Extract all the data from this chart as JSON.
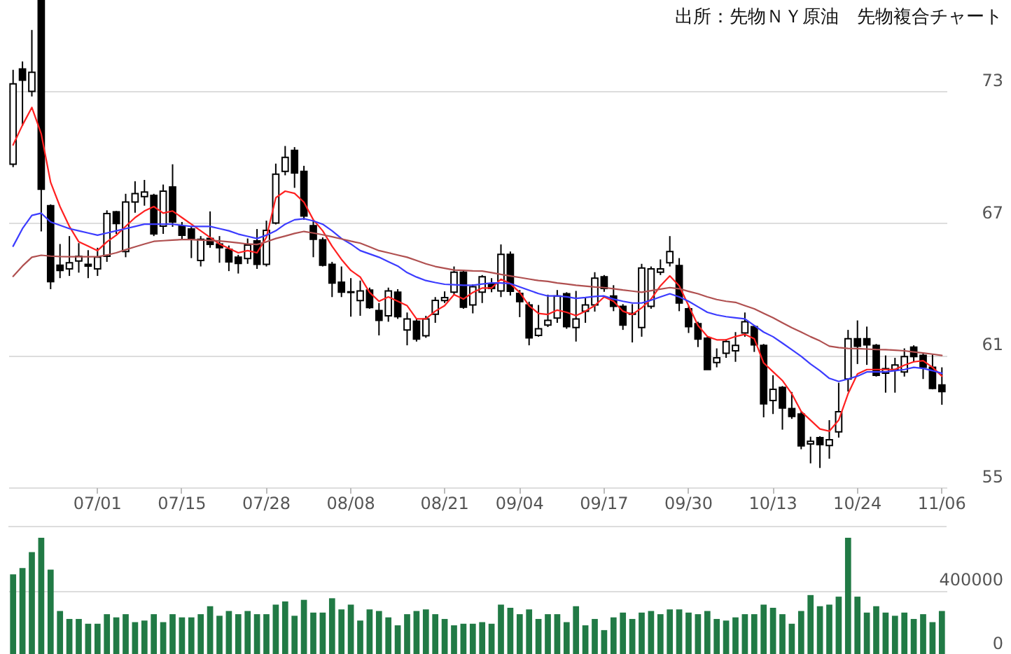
{
  "chart_data": [
    {
      "type": "candlestick",
      "annotations": [
        "出所：先物ＮＹ原油　先物複合チャート"
      ],
      "categories": [
        null,
        null,
        null,
        null,
        null,
        null,
        null,
        null,
        null,
        "07/01",
        null,
        null,
        null,
        null,
        null,
        null,
        null,
        null,
        "07/15",
        null,
        null,
        null,
        null,
        null,
        null,
        null,
        null,
        "07/28",
        null,
        null,
        null,
        null,
        null,
        null,
        null,
        null,
        "08/08",
        null,
        null,
        null,
        null,
        null,
        null,
        null,
        null,
        null,
        "08/21",
        null,
        null,
        null,
        null,
        null,
        null,
        null,
        "09/04",
        null,
        null,
        null,
        null,
        null,
        null,
        null,
        null,
        "09/17",
        null,
        null,
        null,
        null,
        null,
        null,
        null,
        null,
        "09/30",
        null,
        null,
        null,
        null,
        null,
        null,
        null,
        null,
        "10/13",
        null,
        null,
        null,
        null,
        null,
        null,
        null,
        null,
        "10/24",
        null,
        null,
        null,
        null,
        null,
        null,
        null,
        null,
        "11/06"
      ],
      "ohlc": [
        [
          69.67,
          73.96,
          69.54,
          73.32
        ],
        [
          74.0,
          74.34,
          71.41,
          73.49
        ],
        [
          72.98,
          75.77,
          72.75,
          73.85
        ],
        [
          77.1,
          77.1,
          66.62,
          68.54
        ],
        [
          67.79,
          67.85,
          64.0,
          64.34
        ],
        [
          65.09,
          66.05,
          64.5,
          64.85
        ],
        [
          64.92,
          66.41,
          64.6,
          65.2
        ],
        [
          65.28,
          66.09,
          64.75,
          65.49
        ],
        [
          65.13,
          65.77,
          64.5,
          65.05
        ],
        [
          64.92,
          65.88,
          64.6,
          65.45
        ],
        [
          65.49,
          67.58,
          65.24,
          67.43
        ],
        [
          67.51,
          67.55,
          66.51,
          66.98
        ],
        [
          65.71,
          68.33,
          65.45,
          67.96
        ],
        [
          67.96,
          68.9,
          67.47,
          68.34
        ],
        [
          68.2,
          68.96,
          67.79,
          68.41
        ],
        [
          68.26,
          68.33,
          66.41,
          66.51
        ],
        [
          66.86,
          68.75,
          66.51,
          68.45
        ],
        [
          68.64,
          69.67,
          66.83,
          67.05
        ],
        [
          66.86,
          67.05,
          66.26,
          66.45
        ],
        [
          66.73,
          66.83,
          65.41,
          66.3
        ],
        [
          65.3,
          66.41,
          65.03,
          66.26
        ],
        [
          66.3,
          67.53,
          65.88,
          66.03
        ],
        [
          66.05,
          66.41,
          65.2,
          65.88
        ],
        [
          65.81,
          65.98,
          64.82,
          65.24
        ],
        [
          65.45,
          65.56,
          64.71,
          65.17
        ],
        [
          65.39,
          66.3,
          65.15,
          66.0
        ],
        [
          66.19,
          66.73,
          64.92,
          65.13
        ],
        [
          65.13,
          67.11,
          65.03,
          66.67
        ],
        [
          67.0,
          69.7,
          66.94,
          69.22
        ],
        [
          69.35,
          70.5,
          69.17,
          69.98
        ],
        [
          70.3,
          70.45,
          68.6,
          69.28
        ],
        [
          69.35,
          69.6,
          67.15,
          67.32
        ],
        [
          66.88,
          67.15,
          65.45,
          66.26
        ],
        [
          66.24,
          66.35,
          65.03,
          65.09
        ],
        [
          65.13,
          65.24,
          63.64,
          64.28
        ],
        [
          64.32,
          65.03,
          63.64,
          63.86
        ],
        [
          63.88,
          64.5,
          62.75,
          63.85
        ],
        [
          63.48,
          64.39,
          62.79,
          63.92
        ],
        [
          63.96,
          64.07,
          63.11,
          63.16
        ],
        [
          63.03,
          63.37,
          61.9,
          62.58
        ],
        [
          62.79,
          64.07,
          62.52,
          63.92
        ],
        [
          63.86,
          64.0,
          62.65,
          62.75
        ],
        [
          62.15,
          62.94,
          61.45,
          62.65
        ],
        [
          62.54,
          62.65,
          61.62,
          61.73
        ],
        [
          61.88,
          62.79,
          61.79,
          62.65
        ],
        [
          62.86,
          63.64,
          62.47,
          63.49
        ],
        [
          63.48,
          63.9,
          63.37,
          63.62
        ],
        [
          63.86,
          65.03,
          63.71,
          64.77
        ],
        [
          64.77,
          64.85,
          63.11,
          63.18
        ],
        [
          63.28,
          64.22,
          62.9,
          64.11
        ],
        [
          63.86,
          64.64,
          63.37,
          64.56
        ],
        [
          64.24,
          64.5,
          63.86,
          64.03
        ],
        [
          63.92,
          66.03,
          63.64,
          65.58
        ],
        [
          65.58,
          65.71,
          63.71,
          63.9
        ],
        [
          63.81,
          63.96,
          62.73,
          63.43
        ],
        [
          63.28,
          63.43,
          61.45,
          61.79
        ],
        [
          61.9,
          63.28,
          61.84,
          62.2
        ],
        [
          62.37,
          63.75,
          62.28,
          62.58
        ],
        [
          62.69,
          63.96,
          62.47,
          63.69
        ],
        [
          63.79,
          63.86,
          62.2,
          62.3
        ],
        [
          62.26,
          63.92,
          61.62,
          62.65
        ],
        [
          63.0,
          63.64,
          62.47,
          63.28
        ],
        [
          63.28,
          64.77,
          62.98,
          64.5
        ],
        [
          64.56,
          64.64,
          63.88,
          64.03
        ],
        [
          63.69,
          64.18,
          63.0,
          63.22
        ],
        [
          63.22,
          63.32,
          62.15,
          62.37
        ],
        [
          62.9,
          63.32,
          61.58,
          62.86
        ],
        [
          62.26,
          65.15,
          61.84,
          64.96
        ],
        [
          63.22,
          65.03,
          63.11,
          64.92
        ],
        [
          64.77,
          65.35,
          64.64,
          64.92
        ],
        [
          65.2,
          66.41,
          65.03,
          65.71
        ],
        [
          65.07,
          65.41,
          63.0,
          63.37
        ],
        [
          63.11,
          63.22,
          62.01,
          62.3
        ],
        [
          62.43,
          62.52,
          61.37,
          61.73
        ],
        [
          61.77,
          61.84,
          60.35,
          60.35
        ],
        [
          60.67,
          61.31,
          60.45,
          60.88
        ],
        [
          61.09,
          61.73,
          60.88,
          61.62
        ],
        [
          61.2,
          62.05,
          60.7,
          61.45
        ],
        [
          62.01,
          62.94,
          61.84,
          62.52
        ],
        [
          62.3,
          62.37,
          61.15,
          61.47
        ],
        [
          61.45,
          61.51,
          58.18,
          58.79
        ],
        [
          58.94,
          60.09,
          58.33,
          59.45
        ],
        [
          59.54,
          59.6,
          57.62,
          58.6
        ],
        [
          58.58,
          59.33,
          58.11,
          58.22
        ],
        [
          58.33,
          58.45,
          56.73,
          56.88
        ],
        [
          56.97,
          57.3,
          56.09,
          57.09
        ],
        [
          57.26,
          57.32,
          55.88,
          56.94
        ],
        [
          56.9,
          58.05,
          56.3,
          57.16
        ],
        [
          57.52,
          59.75,
          57.26,
          58.43
        ],
        [
          59.92,
          62.15,
          59.35,
          61.75
        ],
        [
          61.75,
          62.58,
          60.6,
          61.41
        ],
        [
          61.75,
          62.3,
          60.56,
          61.47
        ],
        [
          61.45,
          61.51,
          60.03,
          60.09
        ],
        [
          60.18,
          60.99,
          59.3,
          60.39
        ],
        [
          60.35,
          60.88,
          59.3,
          60.56
        ],
        [
          60.24,
          61.31,
          60.03,
          60.94
        ],
        [
          61.37,
          61.45,
          60.69,
          60.94
        ],
        [
          60.99,
          61.09,
          59.92,
          60.45
        ],
        [
          60.45,
          61.03,
          59.45,
          59.49
        ],
        [
          59.65,
          60.45,
          58.75,
          59.35
        ]
      ],
      "series": [
        {
          "type": "line",
          "color": "#ff2020",
          "values": [
            70.55,
            71.45,
            72.25,
            71.05,
            68.85,
            67.75,
            66.85,
            66.15,
            65.95,
            65.75,
            66.15,
            66.45,
            66.85,
            67.25,
            67.55,
            67.75,
            67.45,
            67.55,
            67.25,
            66.95,
            66.65,
            66.35,
            66.05,
            65.85,
            65.65,
            65.75,
            65.65,
            66.35,
            68.15,
            68.45,
            68.35,
            67.95,
            67.15,
            66.65,
            65.95,
            65.35,
            64.85,
            64.55,
            63.85,
            63.45,
            63.65,
            63.45,
            63.25,
            62.65,
            62.65,
            63.0,
            63.25,
            63.75,
            63.55,
            63.85,
            64.05,
            64.05,
            64.45,
            64.25,
            63.85,
            63.25,
            62.9,
            62.85,
            63.05,
            62.95,
            62.8,
            63.0,
            63.25,
            63.65,
            63.45,
            63.0,
            62.85,
            63.15,
            63.55,
            64.15,
            64.6,
            64.15,
            63.25,
            62.35,
            61.85,
            61.7,
            61.7,
            61.85,
            61.95,
            61.75,
            60.65,
            60.25,
            59.85,
            59.25,
            58.45,
            58.05,
            57.65,
            57.55,
            58.05,
            59.25,
            60.15,
            60.35,
            60.35,
            60.35,
            60.35,
            60.55,
            60.7,
            60.75,
            60.45,
            60.05
          ]
        },
        {
          "type": "line",
          "color": "#3c3cff",
          "values": [
            65.95,
            66.75,
            67.35,
            67.45,
            67.05,
            66.9,
            66.75,
            66.65,
            66.55,
            66.45,
            66.55,
            66.65,
            66.75,
            66.85,
            66.95,
            66.95,
            66.95,
            66.95,
            66.9,
            66.85,
            66.85,
            66.85,
            66.75,
            66.65,
            66.5,
            66.4,
            66.3,
            66.45,
            66.65,
            66.95,
            67.15,
            67.2,
            67.1,
            66.95,
            66.65,
            66.3,
            66.05,
            65.75,
            65.6,
            65.45,
            65.25,
            65.05,
            64.75,
            64.55,
            64.39,
            64.3,
            64.22,
            64.2,
            64.18,
            64.18,
            64.23,
            64.28,
            64.28,
            64.25,
            64.1,
            63.95,
            63.8,
            63.69,
            63.69,
            63.65,
            63.58,
            63.62,
            63.67,
            63.69,
            63.55,
            63.45,
            63.37,
            63.37,
            63.5,
            63.65,
            63.79,
            63.65,
            63.45,
            63.2,
            62.95,
            62.83,
            62.75,
            62.7,
            62.65,
            62.35,
            62.05,
            61.84,
            61.55,
            61.25,
            60.95,
            60.6,
            60.3,
            59.95,
            59.81,
            59.92,
            60.05,
            60.24,
            60.24,
            60.24,
            60.3,
            60.35,
            60.45,
            60.4,
            60.3,
            60.18
          ]
        },
        {
          "type": "line",
          "color": "#b05050",
          "values": [
            64.58,
            65.05,
            65.45,
            65.54,
            65.5,
            65.48,
            65.47,
            65.47,
            65.47,
            65.47,
            65.55,
            65.65,
            65.79,
            65.92,
            66.05,
            66.17,
            66.2,
            66.23,
            66.25,
            66.25,
            66.23,
            66.21,
            66.19,
            66.15,
            66.1,
            66.05,
            66.03,
            66.15,
            66.3,
            66.41,
            66.53,
            66.62,
            66.55,
            66.47,
            66.38,
            66.28,
            66.18,
            66.09,
            65.92,
            65.75,
            65.65,
            65.55,
            65.45,
            65.3,
            65.15,
            65.03,
            64.95,
            64.87,
            64.85,
            64.83,
            64.82,
            64.75,
            64.67,
            64.6,
            64.53,
            64.46,
            64.39,
            64.35,
            64.28,
            64.23,
            64.18,
            64.14,
            64.1,
            64.07,
            64.02,
            63.96,
            63.91,
            63.86,
            63.93,
            64.0,
            64.07,
            64.02,
            63.9,
            63.79,
            63.65,
            63.53,
            63.45,
            63.4,
            63.25,
            63.11,
            62.9,
            62.7,
            62.47,
            62.25,
            62.05,
            61.84,
            61.65,
            61.41,
            61.35,
            61.31,
            61.3,
            61.28,
            61.26,
            61.25,
            61.23,
            61.2,
            61.15,
            61.1,
            61.05,
            60.99
          ]
        }
      ],
      "ylim": [
        55,
        77.13
      ],
      "yticks": [
        55,
        61,
        67,
        73
      ],
      "grid": "y"
    },
    {
      "type": "bar",
      "categories": [
        null,
        null,
        null,
        null,
        null,
        null,
        null,
        null,
        null,
        null,
        null,
        null,
        null,
        null,
        null,
        null,
        null,
        null,
        null,
        null,
        null,
        null,
        null,
        null,
        null,
        null,
        null,
        null,
        null,
        null,
        null,
        null,
        null,
        null,
        null,
        null,
        null,
        null,
        null,
        null,
        null,
        null,
        null,
        null,
        null,
        null,
        null,
        null,
        null,
        null,
        null,
        null,
        null,
        null,
        null,
        null,
        null,
        null,
        null,
        null,
        null,
        null,
        null,
        null,
        null,
        null,
        null,
        null,
        null,
        null,
        null,
        null,
        null,
        null,
        null,
        null,
        null,
        null,
        null,
        null,
        null,
        null,
        null,
        null,
        null,
        null,
        null,
        null,
        null,
        null,
        null,
        null,
        null,
        null,
        null,
        null,
        null,
        null,
        null,
        null
      ],
      "values": [
        500000,
        540000,
        640000,
        730000,
        530000,
        270000,
        220000,
        220000,
        190000,
        190000,
        250000,
        230000,
        250000,
        200000,
        210000,
        250000,
        200000,
        250000,
        230000,
        230000,
        250000,
        300000,
        240000,
        270000,
        250000,
        270000,
        250000,
        250000,
        310000,
        330000,
        240000,
        340000,
        260000,
        260000,
        350000,
        280000,
        310000,
        210000,
        280000,
        270000,
        230000,
        180000,
        250000,
        270000,
        280000,
        250000,
        220000,
        180000,
        190000,
        190000,
        200000,
        190000,
        310000,
        290000,
        250000,
        280000,
        220000,
        250000,
        250000,
        200000,
        300000,
        180000,
        220000,
        150000,
        230000,
        260000,
        220000,
        260000,
        270000,
        250000,
        280000,
        280000,
        260000,
        250000,
        270000,
        220000,
        210000,
        230000,
        250000,
        250000,
        310000,
        290000,
        250000,
        190000,
        270000,
        370000,
        300000,
        310000,
        360000,
        730000,
        360000,
        260000,
        300000,
        260000,
        240000,
        260000,
        220000,
        250000,
        200000,
        270000
      ],
      "color": "#217a45",
      "ylim": [
        0,
        800000
      ],
      "yticks": [
        0,
        400000
      ],
      "grid": "y",
      "tick_labels": "y"
    }
  ]
}
